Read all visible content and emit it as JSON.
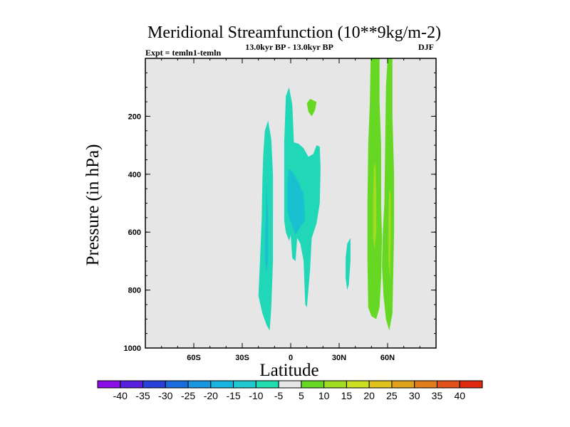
{
  "chart_data": {
    "type": "contour",
    "title": "Meridional Streamfunction (10**9kg/m-2)",
    "subtitle_left": "Expt = temln1-temln",
    "subtitle_center": "13.0kyr BP - 13.0kyr BP",
    "subtitle_right": "DJF",
    "xlabel": "Latitude",
    "ylabel": "Pressure (in hPa)",
    "xlim": [
      -90,
      90
    ],
    "ylim": [
      1000,
      0
    ],
    "x_ticks": [
      {
        "value": -60,
        "label": "60S"
      },
      {
        "value": -30,
        "label": "30S"
      },
      {
        "value": 0,
        "label": "0"
      },
      {
        "value": 30,
        "label": "30N"
      },
      {
        "value": 60,
        "label": "60N"
      }
    ],
    "y_ticks": [
      {
        "value": 200,
        "label": "200"
      },
      {
        "value": 400,
        "label": "400"
      },
      {
        "value": 600,
        "label": "600"
      },
      {
        "value": 800,
        "label": "800"
      },
      {
        "value": 1000,
        "label": "1000"
      }
    ],
    "background_color": "#e6e6e6",
    "regions": [
      {
        "name": "neg-cell-sh",
        "level": -10,
        "color": "#20d8b8",
        "points": [
          [
            -20,
            820
          ],
          [
            -19,
            700
          ],
          [
            -18,
            560
          ],
          [
            -17.5,
            420
          ],
          [
            -17,
            330
          ],
          [
            -16,
            250
          ],
          [
            -14,
            215
          ],
          [
            -12,
            280
          ],
          [
            -11,
            400
          ],
          [
            -11,
            550
          ],
          [
            -11,
            700
          ],
          [
            -12,
            860
          ],
          [
            -13,
            940
          ],
          [
            -15,
            920
          ],
          [
            -17.5,
            880
          ]
        ]
      },
      {
        "name": "neg-cell-sh-core",
        "level": -15,
        "color": "#18c0d0",
        "points": [
          [
            -16,
            690
          ],
          [
            -15.5,
            560
          ],
          [
            -15,
            420
          ],
          [
            -14,
            540
          ],
          [
            -14,
            690
          ],
          [
            -15,
            740
          ]
        ]
      },
      {
        "name": "neg-cell-eq",
        "level": -10,
        "color": "#20d8b8",
        "points": [
          [
            -4,
            500
          ],
          [
            -4,
            290
          ],
          [
            -3,
            130
          ],
          [
            -1,
            100
          ],
          [
            1,
            160
          ],
          [
            2,
            290
          ],
          [
            5,
            295
          ],
          [
            8,
            310
          ],
          [
            11,
            340
          ],
          [
            14,
            330
          ],
          [
            16,
            300
          ],
          [
            18,
            305
          ],
          [
            18.5,
            380
          ],
          [
            18,
            500
          ],
          [
            16,
            570
          ],
          [
            13,
            620
          ],
          [
            12,
            730
          ],
          [
            10,
            860
          ],
          [
            9,
            850
          ],
          [
            8,
            700
          ],
          [
            6,
            640
          ],
          [
            4,
            620
          ],
          [
            3,
            700
          ],
          [
            1,
            690
          ],
          [
            0,
            610
          ],
          [
            -1,
            630
          ],
          [
            -3,
            600
          ],
          [
            -4,
            560
          ]
        ]
      },
      {
        "name": "neg-cell-eq-core",
        "level": -15,
        "color": "#18c0d0",
        "points": [
          [
            -2,
            520
          ],
          [
            -2,
            420
          ],
          [
            -1,
            380
          ],
          [
            2,
            400
          ],
          [
            5,
            430
          ],
          [
            8,
            470
          ],
          [
            9,
            560
          ],
          [
            6,
            580
          ],
          [
            3,
            610
          ],
          [
            1,
            580
          ],
          [
            -1,
            550
          ]
        ]
      },
      {
        "name": "neg-blob-30n",
        "level": -10,
        "color": "#20d8b8",
        "points": [
          [
            34,
            690
          ],
          [
            35,
            640
          ],
          [
            37,
            620
          ],
          [
            37,
            700
          ],
          [
            36,
            780
          ],
          [
            35,
            800
          ],
          [
            34,
            760
          ]
        ]
      },
      {
        "name": "pos-blob-10n",
        "level": 5,
        "color": "#66d823",
        "points": [
          [
            10,
            155
          ],
          [
            12,
            140
          ],
          [
            16,
            150
          ],
          [
            15,
            180
          ],
          [
            13,
            200
          ],
          [
            11,
            185
          ]
        ]
      },
      {
        "name": "pos-cell-nh-1",
        "level": 5,
        "color": "#66d823",
        "points": [
          [
            48,
            860
          ],
          [
            47.5,
            700
          ],
          [
            47.5,
            500
          ],
          [
            48,
            300
          ],
          [
            49,
            150
          ],
          [
            49.5,
            0
          ],
          [
            55,
            0
          ],
          [
            55,
            150
          ],
          [
            56,
            300
          ],
          [
            56,
            500
          ],
          [
            56.5,
            620
          ],
          [
            56,
            760
          ],
          [
            55,
            860
          ],
          [
            53,
            900
          ],
          [
            50,
            890
          ]
        ]
      },
      {
        "name": "pos-cell-nh-2",
        "level": 5,
        "color": "#66d823",
        "points": [
          [
            56.5,
            720
          ],
          [
            57,
            600
          ],
          [
            58,
            500
          ],
          [
            58.5,
            300
          ],
          [
            59,
            100
          ],
          [
            60,
            0
          ],
          [
            63,
            0
          ],
          [
            63,
            200
          ],
          [
            64,
            400
          ],
          [
            64,
            600
          ],
          [
            63.5,
            750
          ],
          [
            63,
            880
          ],
          [
            61,
            940
          ],
          [
            59,
            900
          ],
          [
            57.5,
            820
          ]
        ]
      },
      {
        "name": "pos-core-1",
        "level": 10,
        "color": "#a0dc1f",
        "points": [
          [
            51,
            620
          ],
          [
            51,
            480
          ],
          [
            51.5,
            380
          ],
          [
            52.5,
            360
          ],
          [
            53,
            460
          ],
          [
            53,
            600
          ],
          [
            52,
            660
          ]
        ]
      },
      {
        "name": "pos-core-2",
        "level": 10,
        "color": "#a0dc1f",
        "points": [
          [
            60.5,
            700
          ],
          [
            60.5,
            560
          ],
          [
            61,
            450
          ],
          [
            62,
            470
          ],
          [
            62,
            620
          ],
          [
            61.5,
            760
          ]
        ]
      }
    ],
    "colorbar": {
      "levels": [
        -40,
        -35,
        -30,
        -25,
        -20,
        -15,
        -10,
        -5,
        5,
        10,
        15,
        20,
        25,
        30,
        35,
        40
      ],
      "colors": [
        "#8a0de8",
        "#5a1ee0",
        "#2840d8",
        "#1a6be0",
        "#1896e0",
        "#18b4e0",
        "#20c8d0",
        "#20dcb0",
        "#e6e6e6",
        "#66d823",
        "#a0dc1f",
        "#cce023",
        "#e0c21a",
        "#e0a21a",
        "#e07c1a",
        "#e0521a",
        "#e02a10"
      ]
    }
  }
}
